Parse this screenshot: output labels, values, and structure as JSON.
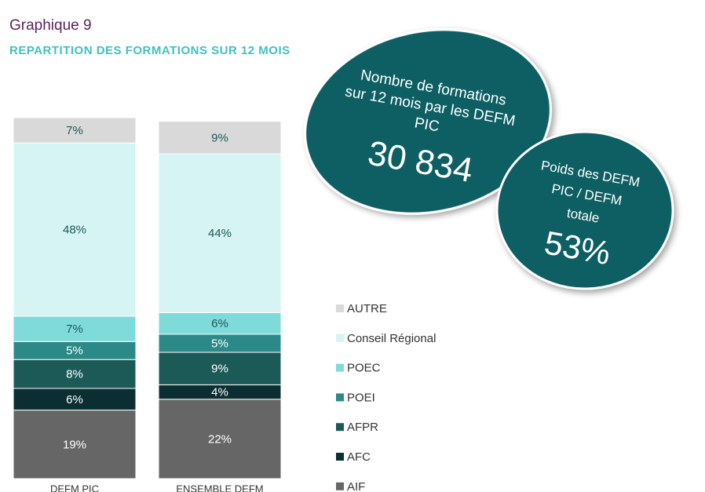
{
  "chart_data": {
    "type": "stacked_bar",
    "title": "Graphique 9",
    "subtitle": "REPARTITION DES FORMATIONS SUR 12 MOIS",
    "categories": [
      "DEFM PIC",
      "ENSEMBLE DEFM"
    ],
    "ylim": [
      0,
      100
    ],
    "series": [
      {
        "name": "AIF",
        "color": "#666666",
        "values": [
          19,
          22
        ],
        "value_labels": [
          "19%",
          "22%"
        ]
      },
      {
        "name": "AFC",
        "color": "#0b2e33",
        "values": [
          6,
          4
        ],
        "value_labels": [
          "6%",
          "4%"
        ]
      },
      {
        "name": "AFPR",
        "color": "#1c5a57",
        "values": [
          8,
          9
        ],
        "value_labels": [
          "8%",
          "9%"
        ]
      },
      {
        "name": "POEI",
        "color": "#2b8a88",
        "values": [
          5,
          5
        ],
        "value_labels": [
          "5%",
          "5%"
        ]
      },
      {
        "name": "POEC",
        "color": "#7fdada",
        "values": [
          7,
          6
        ],
        "value_labels": [
          "7%",
          "6%"
        ]
      },
      {
        "name": "Conseil Régional",
        "color": "#d6f4f4",
        "values": [
          48,
          44
        ],
        "value_labels": [
          "48%",
          "44%"
        ]
      },
      {
        "name": "AUTRE",
        "color": "#d9d9d9",
        "values": [
          7,
          9
        ],
        "value_labels": [
          "7%",
          "9%"
        ]
      }
    ],
    "annotations": [
      {
        "lines": [
          "Nombre de formations",
          "sur 12 mois par les DEFM",
          "PIC"
        ],
        "figure": "30 834"
      },
      {
        "lines": [
          "Poids des DEFM",
          "PIC / DEFM",
          "totale"
        ],
        "figure": "53%"
      }
    ]
  }
}
